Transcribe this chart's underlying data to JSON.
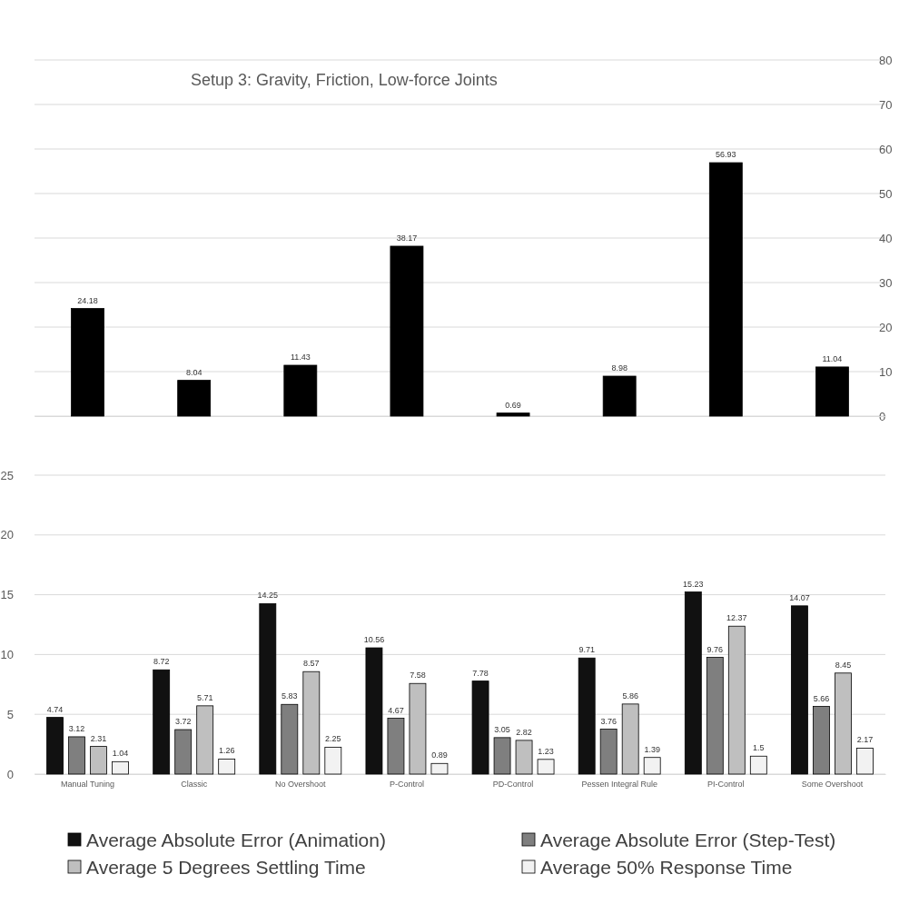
{
  "chart_data": [
    {
      "type": "bar",
      "title": "Setup 3: Gravity, Friction, Low-force Joints",
      "categories": [
        null,
        null,
        null,
        null,
        null,
        null,
        null,
        null
      ],
      "series": [
        {
          "color": "#000000",
          "values": [
            24.18,
            8.04,
            11.43,
            38.17,
            0.69,
            8.98,
            56.93,
            11.04
          ]
        }
      ],
      "ylim": [
        0,
        80
      ],
      "yticks": [
        0,
        10,
        20,
        30,
        40,
        50,
        60,
        70,
        80
      ],
      "grid": "y",
      "data_labels": true
    },
    {
      "type": "bar",
      "categories": [
        "Manual Tuning",
        "Classic",
        "No Overshoot",
        "P-Control",
        "PD-Control",
        "Pessen Integral Rule",
        "PI-Control",
        "Some Overshoot"
      ],
      "series": [
        {
          "name": "Average Absolute Error (Animation)",
          "color": "#111111",
          "values": [
            4.74,
            8.72,
            14.25,
            10.56,
            7.78,
            9.71,
            15.23,
            14.07
          ]
        },
        {
          "name": "Average Absolute Error (Step-Test)",
          "color": "#7f7f7f",
          "values": [
            3.12,
            3.72,
            5.83,
            4.67,
            3.05,
            3.76,
            9.76,
            5.66
          ]
        },
        {
          "name": "Average 5 Degrees Settling Time",
          "color": "#bfbfbf",
          "values": [
            2.31,
            5.71,
            8.57,
            7.58,
            2.82,
            5.86,
            12.37,
            8.45
          ]
        },
        {
          "name": "Average 50% Response Time",
          "color": "#f2f2f2",
          "values": [
            1.04,
            1.26,
            2.25,
            0.89,
            1.23,
            1.39,
            1.5,
            2.17
          ]
        }
      ],
      "ylim": [
        0,
        25
      ],
      "yticks": [
        0,
        5,
        10,
        15,
        20,
        25
      ],
      "grid": "y",
      "legend": "bottom",
      "data_labels": true
    }
  ]
}
